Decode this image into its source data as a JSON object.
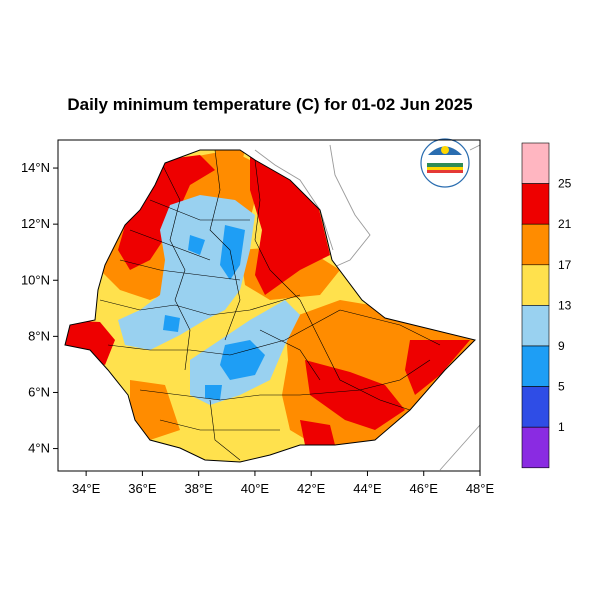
{
  "title": "Daily minimum temperature (C) for 01-02 Jun 2025",
  "map": {
    "lon_range": [
      33,
      48
    ],
    "lat_range": [
      3.2,
      15
    ],
    "x_ticks": [
      {
        "lon": 34,
        "label": "34°E"
      },
      {
        "lon": 36,
        "label": "36°E"
      },
      {
        "lon": 38,
        "label": "38°E"
      },
      {
        "lon": 40,
        "label": "40°E"
      },
      {
        "lon": 42,
        "label": "42°E"
      },
      {
        "lon": 44,
        "label": "44°E"
      },
      {
        "lon": 46,
        "label": "46°E"
      },
      {
        "lon": 48,
        "label": "48°E"
      }
    ],
    "y_ticks": [
      {
        "lat": 4,
        "label": "4°N"
      },
      {
        "lat": 6,
        "label": "6°N"
      },
      {
        "lat": 8,
        "label": "8°N"
      },
      {
        "lat": 10,
        "label": "10°N"
      },
      {
        "lat": 12,
        "label": "12°N"
      },
      {
        "lat": 14,
        "label": "14°N"
      }
    ]
  },
  "legend": {
    "levels": [
      "25",
      "21",
      "17",
      "13",
      "9",
      "5",
      "1"
    ],
    "colors": [
      "#ffb6c1",
      "#ee0000",
      "#ff8c00",
      "#ffe14d",
      "#99d1f0",
      "#1e9ef5",
      "#2f4de6",
      "#8a2be2"
    ]
  },
  "logo": {
    "name": "ethiopian-meteorology-logo"
  }
}
